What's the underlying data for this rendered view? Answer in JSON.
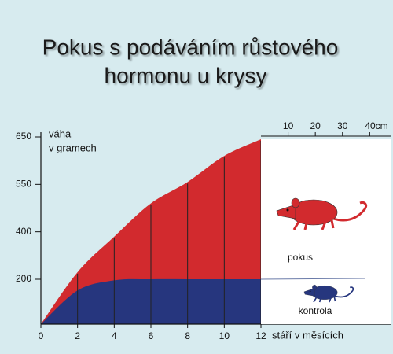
{
  "chart_data": {
    "type": "area",
    "title": [
      "Pokus s podáváním růstového",
      "hormonu u krysy"
    ],
    "ylabel": [
      "váha",
      "v gramech"
    ],
    "xlabel": "stáří v měsících",
    "x": [
      0,
      2,
      4,
      6,
      8,
      10,
      12
    ],
    "xlim": [
      0,
      12
    ],
    "xticks": [
      0,
      2,
      4,
      6,
      8,
      10,
      12
    ],
    "ylim": [
      0,
      650
    ],
    "yticks": [
      200,
      400,
      550,
      650
    ],
    "x2lim": [
      0,
      48
    ],
    "x2ticks": [
      10,
      20,
      30,
      {
        "value": 40,
        "label": "40cm"
      }
    ],
    "grid": true,
    "series": [
      {
        "name": "pokus",
        "color": "#d22a2e",
        "values": [
          0,
          230,
          380,
          490,
          555,
          610,
          645
        ]
      },
      {
        "name": "kontrola",
        "color": "#26367e",
        "values": [
          0,
          150,
          195,
          200,
          200,
          200,
          200
        ]
      }
    ]
  }
}
